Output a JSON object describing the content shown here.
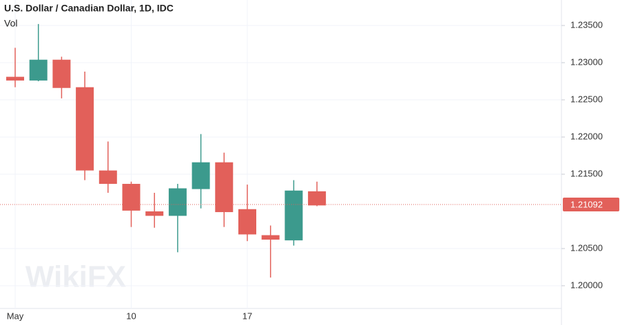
{
  "chart_data": {
    "type": "candlestick",
    "title": "U.S. Dollar / Canadian Dollar, 1D, IDC",
    "subtitle": "Vol",
    "watermark": "WikiFX",
    "categories": [
      "May",
      null,
      null,
      null,
      null,
      "10",
      null,
      null,
      null,
      null,
      "17",
      null,
      null,
      null
    ],
    "open": [
      1.2281,
      1.2276,
      1.2304,
      1.2267,
      1.2155,
      1.2137,
      1.21,
      1.2094,
      1.213,
      1.2166,
      1.2103,
      1.2068,
      1.2061,
      1.2127
    ],
    "high": [
      1.232,
      1.2352,
      1.2308,
      1.2288,
      1.2194,
      1.214,
      1.2125,
      1.2137,
      1.2204,
      1.2179,
      1.2136,
      1.2081,
      1.2142,
      1.214
    ],
    "low": [
      1.2267,
      1.2275,
      1.2252,
      1.2142,
      1.2125,
      1.2079,
      1.2078,
      1.2045,
      1.2104,
      1.2079,
      1.206,
      1.2011,
      1.2054,
      1.2107
    ],
    "close": [
      1.2276,
      1.2304,
      1.2266,
      1.2155,
      1.2137,
      1.2101,
      1.2094,
      1.2131,
      1.2166,
      1.2099,
      1.2069,
      1.2062,
      1.2128,
      1.2108
    ],
    "up_color": "#3c9a8d",
    "down_color": "#e2605a",
    "last_price": 1.21092,
    "ylim": [
      1.19694,
      1.23843
    ],
    "yticks": [
      {
        "value": 1.2,
        "label": "1.20000"
      },
      {
        "value": 1.205,
        "label": "1.20500"
      },
      {
        "value": 1.215,
        "label": "1.21500"
      },
      {
        "value": 1.22,
        "label": "1.22000"
      },
      {
        "value": 1.225,
        "label": "1.22500"
      },
      {
        "value": 1.23,
        "label": "1.23000"
      },
      {
        "value": 1.235,
        "label": "1.23500"
      }
    ],
    "grid": true
  }
}
